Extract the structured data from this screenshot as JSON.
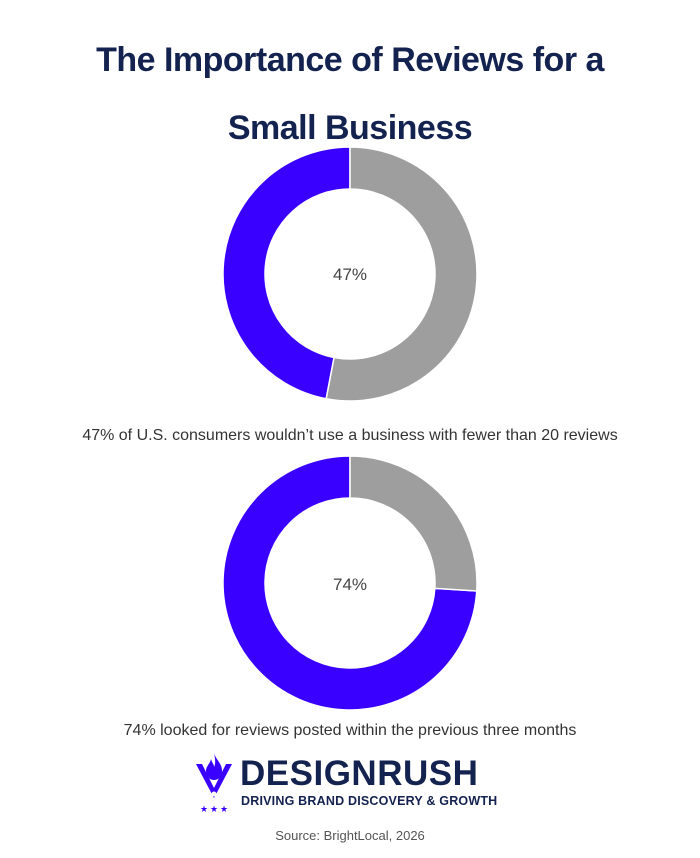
{
  "title_lines": [
    "The Importance of Reviews for a",
    "Small Business"
  ],
  "colors": {
    "primary": "#3a00ff",
    "remainder": "#9e9e9e",
    "title": "#13224f"
  },
  "chart_data": [
    {
      "type": "pie",
      "variant": "donut",
      "values": [
        47,
        53
      ],
      "center_label": "47%",
      "caption": "47% of U.S. consumers wouldn’t use a business with fewer than 20 reviews"
    },
    {
      "type": "pie",
      "variant": "donut",
      "values": [
        74,
        26
      ],
      "center_label": "74%",
      "caption": "74% looked for reviews posted within the previous three months"
    }
  ],
  "logo": {
    "name": "DESIGNRUSH",
    "tagline": "DRIVING BRAND DISCOVERY & GROWTH"
  },
  "source": "Source: BrightLocal, 2026"
}
